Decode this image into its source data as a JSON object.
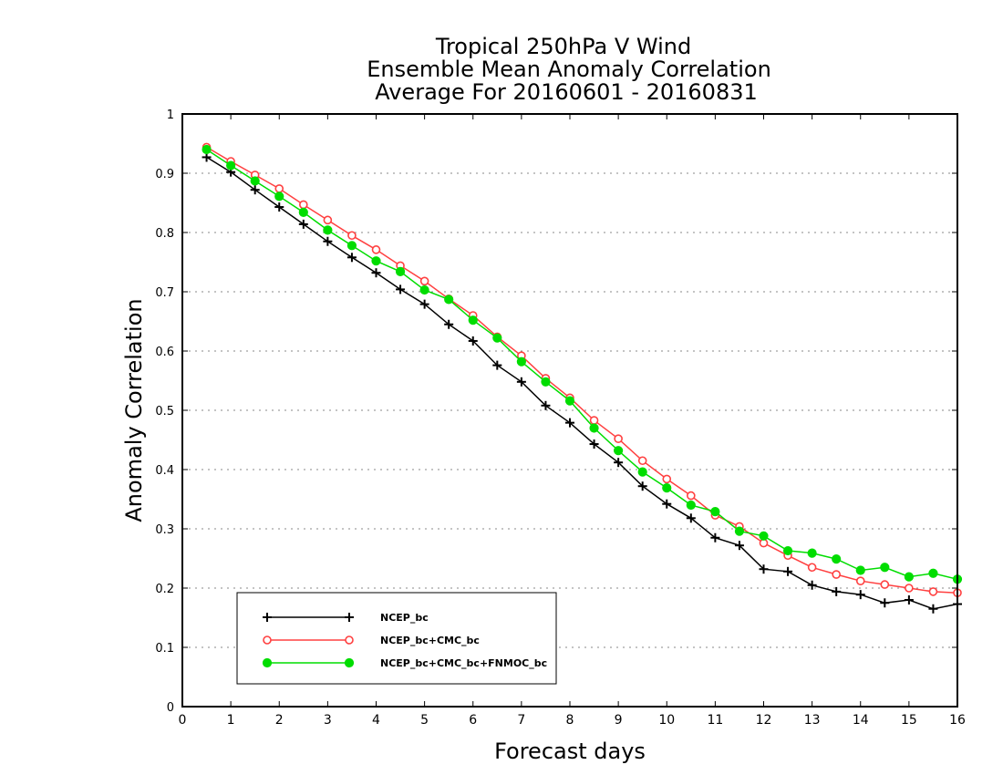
{
  "chart_data": {
    "type": "line",
    "title": [
      "Tropical 250hPa V Wind",
      "Ensemble Mean Anomaly Correlation",
      "Average For 20160601 - 20160831"
    ],
    "xlabel": "Forecast days",
    "ylabel": "Anomaly Correlation",
    "xlim": [
      0,
      16
    ],
    "ylim": [
      0,
      1
    ],
    "xticks": [
      0,
      1,
      2,
      3,
      4,
      5,
      6,
      7,
      8,
      9,
      10,
      11,
      12,
      13,
      14,
      15,
      16
    ],
    "yticks": [
      0,
      0.1,
      0.2,
      0.3,
      0.4,
      0.5,
      0.6,
      0.7,
      0.8,
      0.9,
      1
    ],
    "grid": "dotted horizontal",
    "legend_position": "bottom-left",
    "x": [
      0.5,
      1,
      1.5,
      2,
      2.5,
      3,
      3.5,
      4,
      4.5,
      5,
      5.5,
      6,
      6.5,
      7,
      7.5,
      8,
      8.5,
      9,
      9.5,
      10,
      10.5,
      11,
      11.5,
      12,
      12.5,
      13,
      13.5,
      14,
      14.5,
      15,
      15.5,
      16
    ],
    "series": [
      {
        "name": "NCEP_bc",
        "color": "#000000",
        "marker": "plus",
        "values": [
          0.927,
          0.902,
          0.872,
          0.843,
          0.814,
          0.785,
          0.758,
          0.732,
          0.704,
          0.679,
          0.645,
          0.617,
          0.576,
          0.548,
          0.508,
          0.479,
          0.443,
          0.412,
          0.372,
          0.342,
          0.318,
          0.285,
          0.272,
          0.232,
          0.228,
          0.205,
          0.194,
          0.189,
          0.175,
          0.18,
          0.165,
          0.173
        ]
      },
      {
        "name": "NCEP_bc+CMC_bc",
        "color": "#ff4040",
        "marker": "open-circle",
        "values": [
          0.944,
          0.92,
          0.897,
          0.874,
          0.847,
          0.821,
          0.795,
          0.771,
          0.744,
          0.718,
          0.688,
          0.66,
          0.624,
          0.592,
          0.554,
          0.521,
          0.483,
          0.452,
          0.415,
          0.384,
          0.356,
          0.323,
          0.304,
          0.276,
          0.255,
          0.235,
          0.223,
          0.212,
          0.206,
          0.2,
          0.194,
          0.192
        ]
      },
      {
        "name": "NCEP_bc+CMC_bc+FNMOC_bc",
        "color": "#00dd00",
        "marker": "filled-circle",
        "values": [
          0.94,
          0.913,
          0.887,
          0.861,
          0.834,
          0.804,
          0.778,
          0.752,
          0.734,
          0.703,
          0.687,
          0.652,
          0.622,
          0.582,
          0.548,
          0.516,
          0.47,
          0.432,
          0.396,
          0.369,
          0.34,
          0.329,
          0.296,
          0.288,
          0.263,
          0.259,
          0.249,
          0.23,
          0.235,
          0.219,
          0.225,
          0.215
        ]
      }
    ]
  }
}
